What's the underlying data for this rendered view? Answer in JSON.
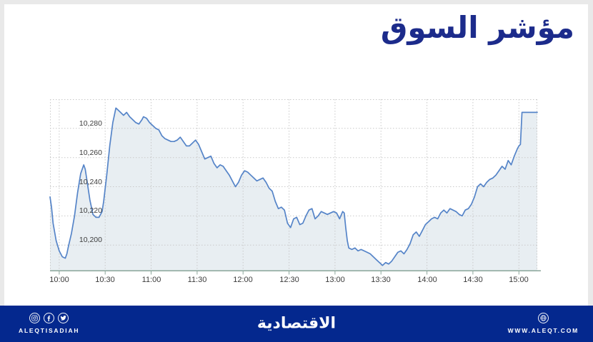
{
  "page": {
    "frame_color": "#e9e9e9",
    "background": "#ffffff"
  },
  "header": {
    "title": "مؤشر السوق",
    "title_color": "#1c2b8b"
  },
  "chart_data": {
    "type": "area",
    "title": "مؤشر السوق",
    "xlabel": "",
    "ylabel": "",
    "grid": true,
    "line_color": "#5584c8",
    "fill_color": "#e8eef2",
    "grid_color": "#c9c9c9",
    "axis_color": "#8aa59a",
    "tick_label_color": "#3c3c3c",
    "x_domain": [
      "09:54",
      "15:12"
    ],
    "ylim": [
      10182,
      10300
    ],
    "x_ticks": [
      "10:00",
      "10:30",
      "11:00",
      "11:30",
      "12:00",
      "12:30",
      "13:00",
      "13:30",
      "14:00",
      "14:30",
      "15:00"
    ],
    "y_ticks": [
      {
        "value": 10200,
        "label": "10,200"
      },
      {
        "value": 10220,
        "label": "10,220"
      },
      {
        "value": 10240,
        "label": "10,240"
      },
      {
        "value": 10260,
        "label": "10,260"
      },
      {
        "value": 10280,
        "label": "10,280"
      }
    ],
    "points": [
      [
        "09:54",
        10233
      ],
      [
        "09:55",
        10226
      ],
      [
        "09:56",
        10215
      ],
      [
        "09:58",
        10203
      ],
      [
        "10:00",
        10196
      ],
      [
        "10:02",
        10192
      ],
      [
        "10:04",
        10191
      ],
      [
        "10:05",
        10194
      ],
      [
        "10:06",
        10199
      ],
      [
        "10:08",
        10208
      ],
      [
        "10:10",
        10220
      ],
      [
        "10:12",
        10236
      ],
      [
        "10:14",
        10249
      ],
      [
        "10:16",
        10255
      ],
      [
        "10:17",
        10252
      ],
      [
        "10:18",
        10245
      ],
      [
        "10:20",
        10231
      ],
      [
        "10:22",
        10221
      ],
      [
        "10:24",
        10219
      ],
      [
        "10:26",
        10219
      ],
      [
        "10:28",
        10223
      ],
      [
        "10:29",
        10230
      ],
      [
        "10:31",
        10248
      ],
      [
        "10:33",
        10268
      ],
      [
        "10:35",
        10284
      ],
      [
        "10:37",
        10294
      ],
      [
        "10:38",
        10293
      ],
      [
        "10:40",
        10291
      ],
      [
        "10:42",
        10289
      ],
      [
        "10:44",
        10291
      ],
      [
        "10:46",
        10288
      ],
      [
        "10:48",
        10286
      ],
      [
        "10:50",
        10284
      ],
      [
        "10:52",
        10283
      ],
      [
        "10:54",
        10286
      ],
      [
        "10:55",
        10288
      ],
      [
        "10:57",
        10287
      ],
      [
        "10:59",
        10284
      ],
      [
        "11:01",
        10282
      ],
      [
        "11:03",
        10280
      ],
      [
        "11:05",
        10279
      ],
      [
        "11:07",
        10275
      ],
      [
        "11:09",
        10273
      ],
      [
        "11:11",
        10272
      ],
      [
        "11:13",
        10271
      ],
      [
        "11:15",
        10271
      ],
      [
        "11:17",
        10272
      ],
      [
        "11:19",
        10274
      ],
      [
        "11:21",
        10271
      ],
      [
        "11:23",
        10268
      ],
      [
        "11:25",
        10268
      ],
      [
        "11:27",
        10270
      ],
      [
        "11:29",
        10272
      ],
      [
        "11:31",
        10269
      ],
      [
        "11:33",
        10264
      ],
      [
        "11:35",
        10259
      ],
      [
        "11:37",
        10260
      ],
      [
        "11:39",
        10261
      ],
      [
        "11:41",
        10256
      ],
      [
        "11:43",
        10253
      ],
      [
        "11:45",
        10255
      ],
      [
        "11:47",
        10254
      ],
      [
        "11:49",
        10251
      ],
      [
        "11:51",
        10248
      ],
      [
        "11:53",
        10244
      ],
      [
        "11:55",
        10240
      ],
      [
        "11:57",
        10243
      ],
      [
        "11:59",
        10248
      ],
      [
        "12:01",
        10251
      ],
      [
        "12:03",
        10250
      ],
      [
        "12:05",
        10248
      ],
      [
        "12:07",
        10246
      ],
      [
        "12:09",
        10244
      ],
      [
        "12:11",
        10245
      ],
      [
        "12:13",
        10246
      ],
      [
        "12:15",
        10243
      ],
      [
        "12:17",
        10239
      ],
      [
        "12:19",
        10237
      ],
      [
        "12:21",
        10230
      ],
      [
        "12:23",
        10225
      ],
      [
        "12:25",
        10226
      ],
      [
        "12:27",
        10224
      ],
      [
        "12:29",
        10215
      ],
      [
        "12:31",
        10212
      ],
      [
        "12:33",
        10218
      ],
      [
        "12:35",
        10219
      ],
      [
        "12:37",
        10214
      ],
      [
        "12:39",
        10215
      ],
      [
        "12:41",
        10220
      ],
      [
        "12:43",
        10224
      ],
      [
        "12:45",
        10225
      ],
      [
        "12:47",
        10218
      ],
      [
        "12:49",
        10220
      ],
      [
        "12:51",
        10223
      ],
      [
        "12:53",
        10222
      ],
      [
        "12:55",
        10221
      ],
      [
        "12:57",
        10222
      ],
      [
        "12:59",
        10223
      ],
      [
        "13:01",
        10222
      ],
      [
        "13:03",
        10218
      ],
      [
        "13:05",
        10223
      ],
      [
        "13:06",
        10222
      ],
      [
        "13:07",
        10212
      ],
      [
        "13:08",
        10203
      ],
      [
        "13:09",
        10198
      ],
      [
        "13:11",
        10197
      ],
      [
        "13:13",
        10198
      ],
      [
        "13:15",
        10196
      ],
      [
        "13:17",
        10197
      ],
      [
        "13:19",
        10196
      ],
      [
        "13:21",
        10195
      ],
      [
        "13:23",
        10194
      ],
      [
        "13:25",
        10192
      ],
      [
        "13:27",
        10190
      ],
      [
        "13:29",
        10188
      ],
      [
        "13:31",
        10186
      ],
      [
        "13:33",
        10188
      ],
      [
        "13:35",
        10187
      ],
      [
        "13:37",
        10189
      ],
      [
        "13:39",
        10192
      ],
      [
        "13:41",
        10195
      ],
      [
        "13:43",
        10196
      ],
      [
        "13:45",
        10194
      ],
      [
        "13:47",
        10197
      ],
      [
        "13:49",
        10201
      ],
      [
        "13:51",
        10207
      ],
      [
        "13:53",
        10209
      ],
      [
        "13:55",
        10206
      ],
      [
        "13:57",
        10210
      ],
      [
        "13:59",
        10214
      ],
      [
        "14:01",
        10216
      ],
      [
        "14:03",
        10218
      ],
      [
        "14:05",
        10219
      ],
      [
        "14:07",
        10218
      ],
      [
        "14:09",
        10222
      ],
      [
        "14:11",
        10224
      ],
      [
        "14:13",
        10222
      ],
      [
        "14:15",
        10225
      ],
      [
        "14:17",
        10224
      ],
      [
        "14:19",
        10223
      ],
      [
        "14:21",
        10221
      ],
      [
        "14:23",
        10220
      ],
      [
        "14:25",
        10224
      ],
      [
        "14:27",
        10225
      ],
      [
        "14:29",
        10228
      ],
      [
        "14:31",
        10233
      ],
      [
        "14:33",
        10240
      ],
      [
        "14:35",
        10242
      ],
      [
        "14:37",
        10240
      ],
      [
        "14:39",
        10243
      ],
      [
        "14:41",
        10245
      ],
      [
        "14:43",
        10246
      ],
      [
        "14:45",
        10248
      ],
      [
        "14:47",
        10251
      ],
      [
        "14:49",
        10254
      ],
      [
        "14:51",
        10252
      ],
      [
        "14:53",
        10258
      ],
      [
        "14:55",
        10255
      ],
      [
        "14:57",
        10261
      ],
      [
        "14:59",
        10266
      ],
      [
        "15:00",
        10268
      ],
      [
        "15:01",
        10269
      ],
      [
        "15:02",
        10291
      ],
      [
        "15:12",
        10291
      ]
    ]
  },
  "footer": {
    "background": "#04288e",
    "brand_latin": "ALEQTISADIAH",
    "brand_arabic": "الاقتصادية",
    "website": "WWW.ALEQT.COM",
    "social_icons": [
      "instagram-icon",
      "facebook-icon",
      "twitter-icon"
    ],
    "website_icon": "globe-icon"
  }
}
